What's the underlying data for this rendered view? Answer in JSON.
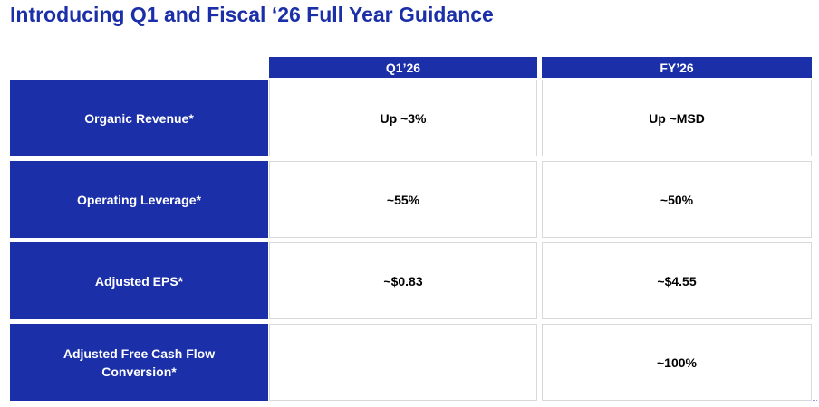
{
  "slide": {
    "title": "Introducing Q1 and Fiscal ‘26 Full Year Guidance"
  },
  "table": {
    "columns": [
      "Q1’26",
      "FY’26"
    ],
    "rows": [
      {
        "label": "Organic Revenue*",
        "q1": "Up ~3%",
        "fy": "Up ~MSD"
      },
      {
        "label": "Operating Leverage*",
        "q1": "~55%",
        "fy": "~50%"
      },
      {
        "label": "Adjusted EPS*",
        "q1": "~$0.83",
        "fy": "~$4.55"
      },
      {
        "label": "Adjusted Free Cash Flow Conversion*",
        "q1": "",
        "fy": "~100%"
      }
    ]
  },
  "colors": {
    "brand_blue": "#1b2fa8",
    "cell_border": "#d9d9d9"
  }
}
